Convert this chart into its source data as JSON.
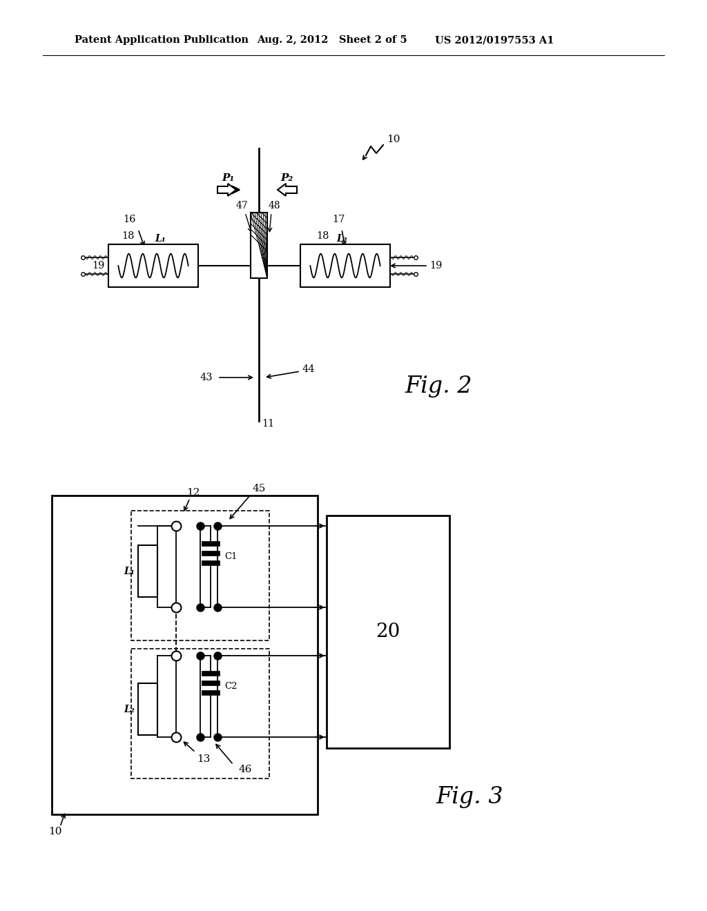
{
  "bg_color": "#ffffff",
  "header_left": "Patent Application Publication",
  "header_mid": "Aug. 2, 2012   Sheet 2 of 5",
  "header_right": "US 2012/0197553 A1",
  "fig2_label": "Fig. 2",
  "fig3_label": "Fig. 3",
  "label_10": "10",
  "label_11": "11",
  "label_12": "12",
  "label_13": "13",
  "label_16": "16",
  "label_17": "17",
  "label_18": "18",
  "label_19": "19",
  "label_20": "20",
  "label_43": "43",
  "label_44": "44",
  "label_45": "45",
  "label_46": "46",
  "label_47": "47",
  "label_48": "48",
  "label_L1": "L₁",
  "label_L2": "L₂",
  "label_C1": "C1",
  "label_C2": "C2",
  "label_P1": "P₁",
  "label_P2": "P₂"
}
